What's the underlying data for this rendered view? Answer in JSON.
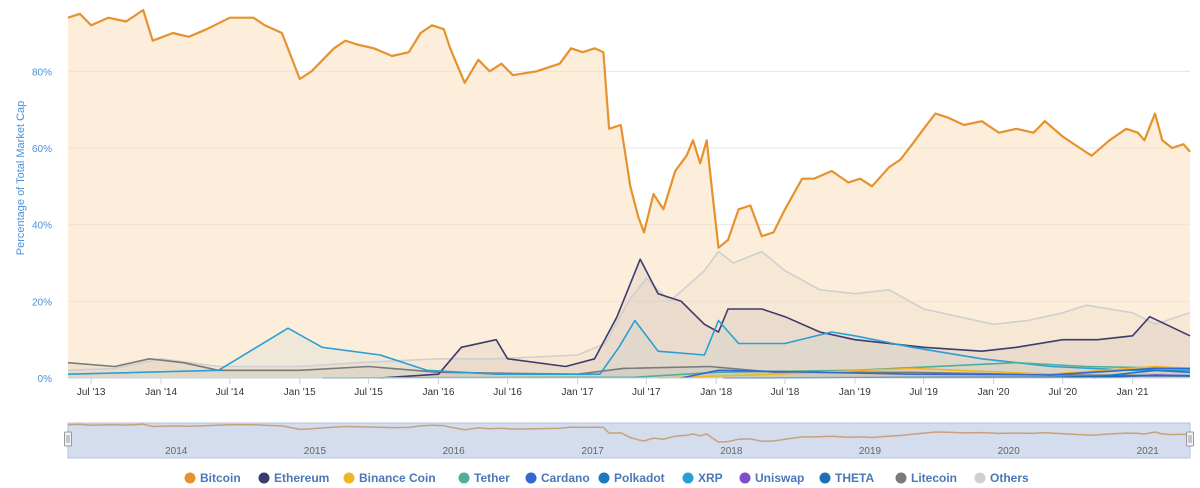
{
  "chart_data": {
    "type": "area",
    "ylabel": "Percentage of Total Market Cap",
    "y_ticks": [
      "0%",
      "20%",
      "40%",
      "60%",
      "80%"
    ],
    "ylim": [
      0,
      96
    ],
    "xlim": [
      "2013-05-01",
      "2021-06-01"
    ],
    "x_ticks": [
      {
        "date": "2013-07-01",
        "label": "Jul '13"
      },
      {
        "date": "2014-01-01",
        "label": "Jan '14"
      },
      {
        "date": "2014-07-01",
        "label": "Jul '14"
      },
      {
        "date": "2015-01-01",
        "label": "Jan '15"
      },
      {
        "date": "2015-07-01",
        "label": "Jul '15"
      },
      {
        "date": "2016-01-01",
        "label": "Jan '16"
      },
      {
        "date": "2016-07-01",
        "label": "Jul '16"
      },
      {
        "date": "2017-01-01",
        "label": "Jan '17"
      },
      {
        "date": "2017-07-01",
        "label": "Jul '17"
      },
      {
        "date": "2018-01-01",
        "label": "Jan '18"
      },
      {
        "date": "2018-07-01",
        "label": "Jul '18"
      },
      {
        "date": "2019-01-01",
        "label": "Jan '19"
      },
      {
        "date": "2019-07-01",
        "label": "Jul '19"
      },
      {
        "date": "2020-01-01",
        "label": "Jan '20"
      },
      {
        "date": "2020-07-01",
        "label": "Jul '20"
      },
      {
        "date": "2021-01-01",
        "label": "Jan '21"
      }
    ],
    "navigator_years": [
      "2014",
      "2015",
      "2016",
      "2017",
      "2018",
      "2019",
      "2020",
      "2021"
    ],
    "grid": true,
    "legend_position": "bottom",
    "series": [
      {
        "name": "Others",
        "color": "#cfcfcf",
        "fill": "rgba(200,200,200,0.25)",
        "points": [
          [
            "2013-05-01",
            2
          ],
          [
            "2013-09-01",
            2.5
          ],
          [
            "2014-01-01",
            5
          ],
          [
            "2014-06-01",
            3
          ],
          [
            "2015-01-01",
            3
          ],
          [
            "2015-06-01",
            4
          ],
          [
            "2016-01-01",
            5
          ],
          [
            "2016-06-01",
            5
          ],
          [
            "2017-01-01",
            6
          ],
          [
            "2017-03-15",
            9
          ],
          [
            "2017-05-15",
            20
          ],
          [
            "2017-07-01",
            26
          ],
          [
            "2017-09-01",
            20
          ],
          [
            "2017-12-01",
            28
          ],
          [
            "2018-01-07",
            33
          ],
          [
            "2018-02-15",
            30
          ],
          [
            "2018-05-01",
            33
          ],
          [
            "2018-07-01",
            28
          ],
          [
            "2018-10-01",
            23
          ],
          [
            "2019-01-01",
            22
          ],
          [
            "2019-04-01",
            23
          ],
          [
            "2019-07-01",
            18
          ],
          [
            "2019-10-01",
            16
          ],
          [
            "2020-01-01",
            14
          ],
          [
            "2020-04-01",
            15
          ],
          [
            "2020-07-01",
            17
          ],
          [
            "2020-09-01",
            19
          ],
          [
            "2021-01-01",
            17
          ],
          [
            "2021-03-01",
            14
          ],
          [
            "2021-06-01",
            17
          ]
        ]
      },
      {
        "name": "Litecoin",
        "color": "#7a7a7a",
        "fill": "rgba(120,120,120,0.2)",
        "points": [
          [
            "2013-05-01",
            4
          ],
          [
            "2013-09-01",
            3
          ],
          [
            "2013-12-01",
            5
          ],
          [
            "2014-03-01",
            4
          ],
          [
            "2014-06-01",
            2
          ],
          [
            "2015-01-01",
            2
          ],
          [
            "2015-07-01",
            3
          ],
          [
            "2016-01-01",
            1.5
          ],
          [
            "2017-01-01",
            1
          ],
          [
            "2017-05-01",
            2.5
          ],
          [
            "2017-12-15",
            3
          ],
          [
            "2018-06-01",
            1.5
          ],
          [
            "2019-06-01",
            1.5
          ],
          [
            "2020-06-01",
            0.8
          ],
          [
            "2021-06-01",
            0.6
          ]
        ]
      },
      {
        "name": "Ethereum",
        "color": "#3c3c6e",
        "fill": "rgba(60,60,110,0.15)",
        "points": [
          [
            "2015-08-01",
            0
          ],
          [
            "2016-01-01",
            1
          ],
          [
            "2016-03-01",
            8
          ],
          [
            "2016-06-01",
            10
          ],
          [
            "2016-07-01",
            5
          ],
          [
            "2016-12-01",
            3
          ],
          [
            "2017-02-15",
            5
          ],
          [
            "2017-04-15",
            16
          ],
          [
            "2017-06-15",
            31
          ],
          [
            "2017-08-01",
            22
          ],
          [
            "2017-10-01",
            20
          ],
          [
            "2017-12-01",
            14
          ],
          [
            "2018-01-07",
            12
          ],
          [
            "2018-02-01",
            18
          ],
          [
            "2018-05-01",
            18
          ],
          [
            "2018-07-01",
            16
          ],
          [
            "2018-10-01",
            12
          ],
          [
            "2019-01-01",
            10
          ],
          [
            "2019-07-01",
            8
          ],
          [
            "2019-12-01",
            7
          ],
          [
            "2020-03-01",
            8
          ],
          [
            "2020-07-01",
            10
          ],
          [
            "2020-10-01",
            10
          ],
          [
            "2021-01-01",
            11
          ],
          [
            "2021-02-15",
            16
          ],
          [
            "2021-06-01",
            11
          ]
        ]
      },
      {
        "name": "XRP",
        "color": "#2a9fd6",
        "fill": "rgba(42,159,214,0.15)",
        "points": [
          [
            "2013-05-01",
            1
          ],
          [
            "2014-06-01",
            2
          ],
          [
            "2014-12-01",
            13
          ],
          [
            "2015-03-01",
            8
          ],
          [
            "2015-08-01",
            6
          ],
          [
            "2015-12-01",
            2
          ],
          [
            "2016-06-01",
            1
          ],
          [
            "2017-03-01",
            1
          ],
          [
            "2017-04-20",
            8
          ],
          [
            "2017-06-01",
            15
          ],
          [
            "2017-08-01",
            7
          ],
          [
            "2017-12-01",
            6
          ],
          [
            "2018-01-07",
            15
          ],
          [
            "2018-03-01",
            9
          ],
          [
            "2018-07-01",
            9
          ],
          [
            "2018-11-01",
            12
          ],
          [
            "2019-01-01",
            11
          ],
          [
            "2019-06-01",
            8
          ],
          [
            "2019-12-01",
            5
          ],
          [
            "2020-06-01",
            3
          ],
          [
            "2021-01-01",
            2
          ],
          [
            "2021-06-01",
            2
          ]
        ]
      },
      {
        "name": "Tether",
        "color": "#50af95",
        "fill": "rgba(80,175,149,0.1)",
        "points": [
          [
            "2015-03-01",
            0
          ],
          [
            "2017-06-01",
            0.2
          ],
          [
            "2018-01-01",
            1.5
          ],
          [
            "2019-01-01",
            2
          ],
          [
            "2020-03-01",
            4
          ],
          [
            "2020-09-01",
            3
          ],
          [
            "2021-06-01",
            2.5
          ]
        ]
      },
      {
        "name": "Binance Coin",
        "color": "#f0b429",
        "fill": "rgba(240,180,41,0.1)",
        "points": [
          [
            "2017-08-01",
            0
          ],
          [
            "2018-06-01",
            1
          ],
          [
            "2019-06-01",
            2.5
          ],
          [
            "2020-06-01",
            1
          ],
          [
            "2021-03-01",
            3
          ],
          [
            "2021-06-01",
            2.5
          ]
        ]
      },
      {
        "name": "Cardano",
        "color": "#3468d1",
        "fill": "rgba(52,104,209,0.1)",
        "points": [
          [
            "2017-10-01",
            0
          ],
          [
            "2018-01-07",
            2
          ],
          [
            "2019-06-01",
            1
          ],
          [
            "2020-06-01",
            0.8
          ],
          [
            "2021-03-01",
            2.5
          ],
          [
            "2021-06-01",
            2.5
          ]
        ]
      },
      {
        "name": "Polkadot",
        "color": "#1b79c4",
        "fill": "rgba(27,121,196,0.1)",
        "points": [
          [
            "2020-08-20",
            0
          ],
          [
            "2020-12-01",
            1
          ],
          [
            "2021-03-01",
            2
          ],
          [
            "2021-06-01",
            1.5
          ]
        ]
      },
      {
        "name": "Uniswap",
        "color": "#7a4fc7",
        "fill": "rgba(122,79,199,0.1)",
        "points": [
          [
            "2020-09-20",
            0
          ],
          [
            "2021-03-01",
            0.8
          ],
          [
            "2021-06-01",
            0.6
          ]
        ]
      },
      {
        "name": "THETA",
        "color": "#1e6fb5",
        "fill": "rgba(30,111,181,0.1)",
        "points": [
          [
            "2018-01-20",
            0
          ],
          [
            "2020-06-01",
            0.2
          ],
          [
            "2021-03-01",
            0.6
          ],
          [
            "2021-06-01",
            0.5
          ]
        ]
      },
      {
        "name": "Bitcoin",
        "color": "#e6922e",
        "fill": "rgba(252,224,190,0.55)",
        "points": [
          [
            "2013-05-01",
            94
          ],
          [
            "2013-06-01",
            95
          ],
          [
            "2013-07-01",
            92
          ],
          [
            "2013-08-15",
            94
          ],
          [
            "2013-10-01",
            93
          ],
          [
            "2013-11-15",
            96
          ],
          [
            "2013-12-10",
            88
          ],
          [
            "2014-02-01",
            90
          ],
          [
            "2014-03-15",
            89
          ],
          [
            "2014-05-01",
            91
          ],
          [
            "2014-07-01",
            94
          ],
          [
            "2014-09-01",
            94
          ],
          [
            "2014-10-01",
            92
          ],
          [
            "2014-11-15",
            90
          ],
          [
            "2015-01-01",
            78
          ],
          [
            "2015-02-01",
            80
          ],
          [
            "2015-04-01",
            86
          ],
          [
            "2015-05-01",
            88
          ],
          [
            "2015-06-01",
            87
          ],
          [
            "2015-07-15",
            86
          ],
          [
            "2015-09-01",
            84
          ],
          [
            "2015-10-15",
            85
          ],
          [
            "2015-11-15",
            90
          ],
          [
            "2015-12-15",
            92
          ],
          [
            "2016-01-15",
            91
          ],
          [
            "2016-02-01",
            86
          ],
          [
            "2016-03-10",
            77
          ],
          [
            "2016-04-15",
            83
          ],
          [
            "2016-05-15",
            80
          ],
          [
            "2016-06-15",
            82
          ],
          [
            "2016-07-15",
            79
          ],
          [
            "2016-09-15",
            80
          ],
          [
            "2016-11-15",
            82
          ],
          [
            "2016-12-15",
            86
          ],
          [
            "2017-01-15",
            85
          ],
          [
            "2017-02-15",
            86
          ],
          [
            "2017-03-10",
            85
          ],
          [
            "2017-03-25",
            65
          ],
          [
            "2017-04-25",
            66
          ],
          [
            "2017-05-20",
            50
          ],
          [
            "2017-06-10",
            42
          ],
          [
            "2017-06-25",
            38
          ],
          [
            "2017-07-20",
            48
          ],
          [
            "2017-08-15",
            44
          ],
          [
            "2017-09-15",
            54
          ],
          [
            "2017-10-15",
            58
          ],
          [
            "2017-11-01",
            62
          ],
          [
            "2017-11-20",
            56
          ],
          [
            "2017-12-07",
            62
          ],
          [
            "2017-12-20",
            50
          ],
          [
            "2018-01-07",
            34
          ],
          [
            "2018-02-01",
            36
          ],
          [
            "2018-03-01",
            44
          ],
          [
            "2018-04-01",
            45
          ],
          [
            "2018-05-01",
            37
          ],
          [
            "2018-06-01",
            38
          ],
          [
            "2018-07-01",
            44
          ],
          [
            "2018-08-15",
            52
          ],
          [
            "2018-09-15",
            52
          ],
          [
            "2018-11-01",
            54
          ],
          [
            "2018-12-15",
            51
          ],
          [
            "2019-01-15",
            52
          ],
          [
            "2019-02-15",
            50
          ],
          [
            "2019-04-01",
            55
          ],
          [
            "2019-05-01",
            57
          ],
          [
            "2019-06-01",
            61
          ],
          [
            "2019-07-01",
            65
          ],
          [
            "2019-08-01",
            69
          ],
          [
            "2019-09-01",
            68
          ],
          [
            "2019-10-15",
            66
          ],
          [
            "2019-12-01",
            67
          ],
          [
            "2020-01-15",
            64
          ],
          [
            "2020-03-01",
            65
          ],
          [
            "2020-04-15",
            64
          ],
          [
            "2020-05-15",
            67
          ],
          [
            "2020-07-01",
            63
          ],
          [
            "2020-08-15",
            60
          ],
          [
            "2020-09-15",
            58
          ],
          [
            "2020-11-01",
            62
          ],
          [
            "2020-12-15",
            65
          ],
          [
            "2021-01-15",
            64
          ],
          [
            "2021-02-01",
            62
          ],
          [
            "2021-03-01",
            69
          ],
          [
            "2021-03-20",
            62
          ],
          [
            "2021-04-15",
            60
          ],
          [
            "2021-05-15",
            61
          ],
          [
            "2021-06-01",
            59
          ]
        ]
      }
    ],
    "legend_items": [
      {
        "name": "Bitcoin",
        "color": "#e6922e"
      },
      {
        "name": "Ethereum",
        "color": "#3c3c6e"
      },
      {
        "name": "Binance Coin",
        "color": "#f0b429"
      },
      {
        "name": "Tether",
        "color": "#50af95"
      },
      {
        "name": "Cardano",
        "color": "#3468d1"
      },
      {
        "name": "Polkadot",
        "color": "#1b79c4"
      },
      {
        "name": "XRP",
        "color": "#2a9fd6"
      },
      {
        "name": "Uniswap",
        "color": "#7a4fc7"
      },
      {
        "name": "THETA",
        "color": "#1e6fb5"
      },
      {
        "name": "Litecoin",
        "color": "#7a7a7a"
      },
      {
        "name": "Others",
        "color": "#cfcfcf"
      }
    ]
  }
}
